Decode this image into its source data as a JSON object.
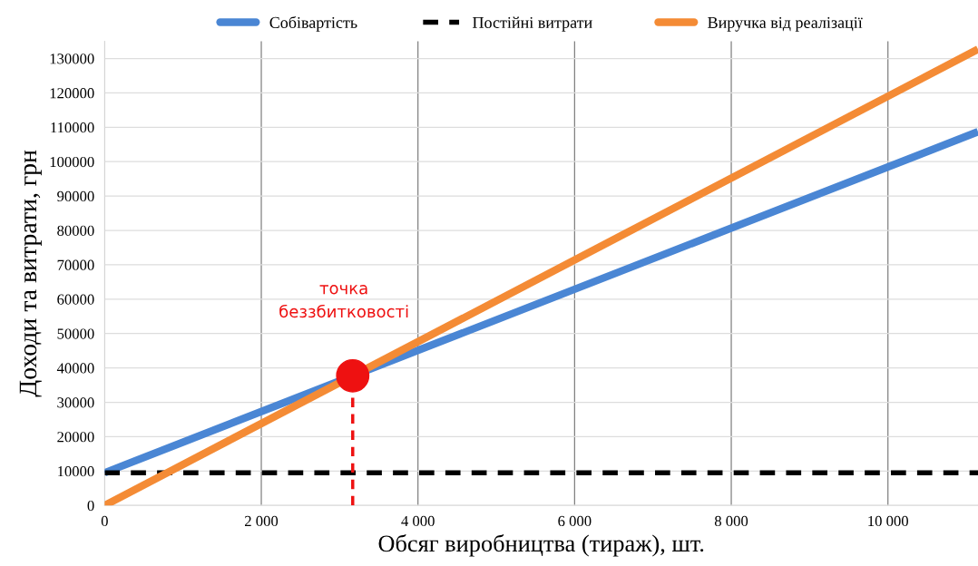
{
  "chart_data": {
    "type": "line",
    "xlabel": "Обсяг виробництва (тираж), шт.",
    "ylabel": "Доходи та витрати, грн",
    "xlim": [
      0,
      11150
    ],
    "ylim": [
      0,
      135000
    ],
    "xticks": [
      0,
      {
        "value": 2000,
        "label": "2 000"
      },
      {
        "value": 4000,
        "label": "4 000"
      },
      {
        "value": 6000,
        "label": "6 000"
      },
      {
        "value": 8000,
        "label": "8 000"
      },
      {
        "value": 10000,
        "label": "10 000"
      }
    ],
    "yticks": [
      0,
      10000,
      20000,
      30000,
      40000,
      50000,
      60000,
      70000,
      80000,
      90000,
      100000,
      110000,
      120000,
      130000
    ],
    "grid": true,
    "legend": "top",
    "marker": "none",
    "series": [
      {
        "name": "Собівартість",
        "color": "#4a86d4",
        "x": [
          0,
          11150
        ],
        "values": [
          9500,
          108700
        ],
        "line_style": "solid"
      },
      {
        "name": "Постійні витрати",
        "color": "#000000",
        "x": [
          0,
          11150
        ],
        "values": [
          9500,
          9500
        ],
        "line_style": "dashed"
      },
      {
        "name": "Виручка від реалізації",
        "color": "#f48b35",
        "x": [
          0,
          11150
        ],
        "values": [
          0,
          132700
        ],
        "line_style": "solid"
      },
      {
        "type": "line",
        "color": "#ee1111",
        "x": [
          3167,
          3167
        ],
        "values": [
          0,
          32000
        ],
        "line_style": "dashed"
      },
      {
        "type": "scatter",
        "color": "#ee1111",
        "x": [
          3167
        ],
        "values": [
          37700
        ],
        "marker": "circle"
      }
    ],
    "annotations": [
      "точка\nбеззбитковості"
    ]
  }
}
